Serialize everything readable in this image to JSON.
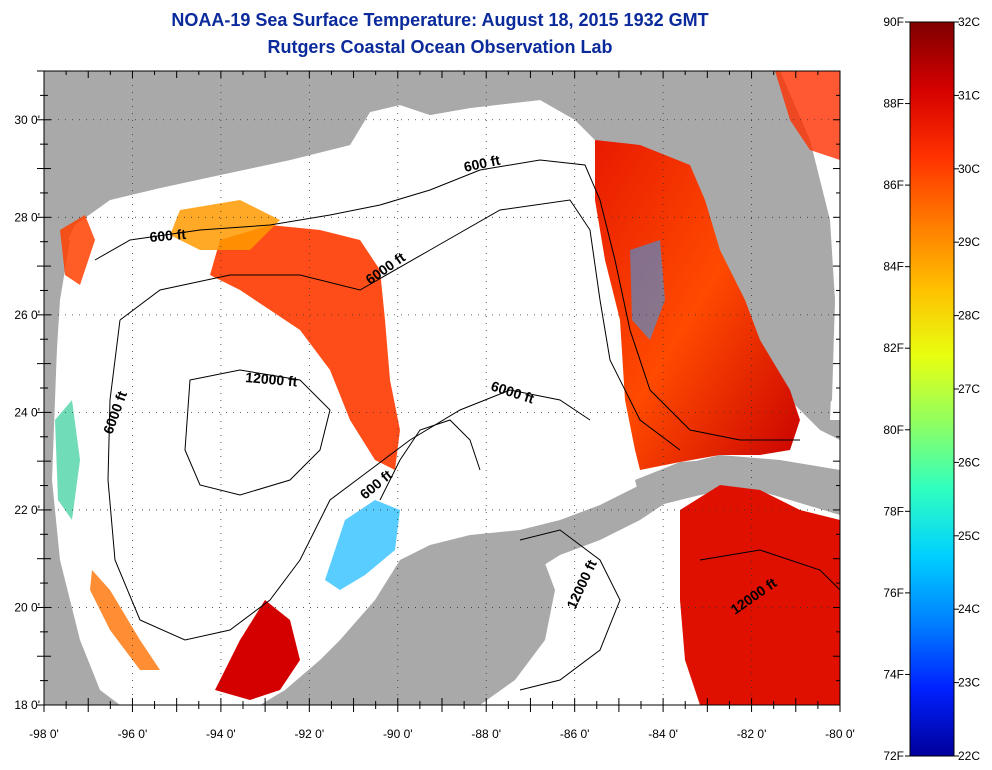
{
  "title": "NOAA-19 Sea Surface Temperature:  August 18, 2015 1932 GMT",
  "subtitle": "Rutgers Coastal Ocean Observation Lab",
  "map": {
    "lon_range": [
      -98,
      -80
    ],
    "lat_range": [
      18,
      31
    ],
    "x_ticks": [
      "-98 0'",
      "-96 0'",
      "-94 0'",
      "-92 0'",
      "-90 0'",
      "-88 0'",
      "-86 0'",
      "-84 0'",
      "-82 0'",
      "-80 0'"
    ],
    "y_ticks": [
      "30 0'",
      "28 0'",
      "26 0'",
      "24 0'",
      "22 0'",
      "20 0'",
      "18 0'"
    ],
    "land_color": "#a9a9a9",
    "nodata_color": "#ffffff",
    "grid": "dotted"
  },
  "contour_labels": [
    {
      "id": "c600a",
      "text": "600 ft"
    },
    {
      "id": "c600b",
      "text": "600 ft"
    },
    {
      "id": "c600c",
      "text": "600 ft"
    },
    {
      "id": "c6000a",
      "text": "6000 ft"
    },
    {
      "id": "c6000b",
      "text": "6000 ft"
    },
    {
      "id": "c6000c",
      "text": "6000 ft"
    },
    {
      "id": "c12000a",
      "text": "12000 ft"
    },
    {
      "id": "c12000b",
      "text": "12000 ft"
    },
    {
      "id": "c12000c",
      "text": "12000 ft"
    }
  ],
  "colorbar": {
    "fahrenheit_labels": [
      "90F",
      "88F",
      "86F",
      "84F",
      "82F",
      "80F",
      "78F",
      "76F",
      "74F",
      "72F"
    ],
    "celsius_labels": [
      "32C",
      "31C",
      "30C",
      "29C",
      "28C",
      "27C",
      "26C",
      "25C",
      "24C",
      "23C",
      "22C"
    ],
    "colors": [
      "#7f0000",
      "#d40000",
      "#ff3000",
      "#ff7a00",
      "#ffc000",
      "#e8ff10",
      "#90ff60",
      "#30ffc0",
      "#00d0ff",
      "#0080ff",
      "#0020ff",
      "#00009a"
    ]
  }
}
